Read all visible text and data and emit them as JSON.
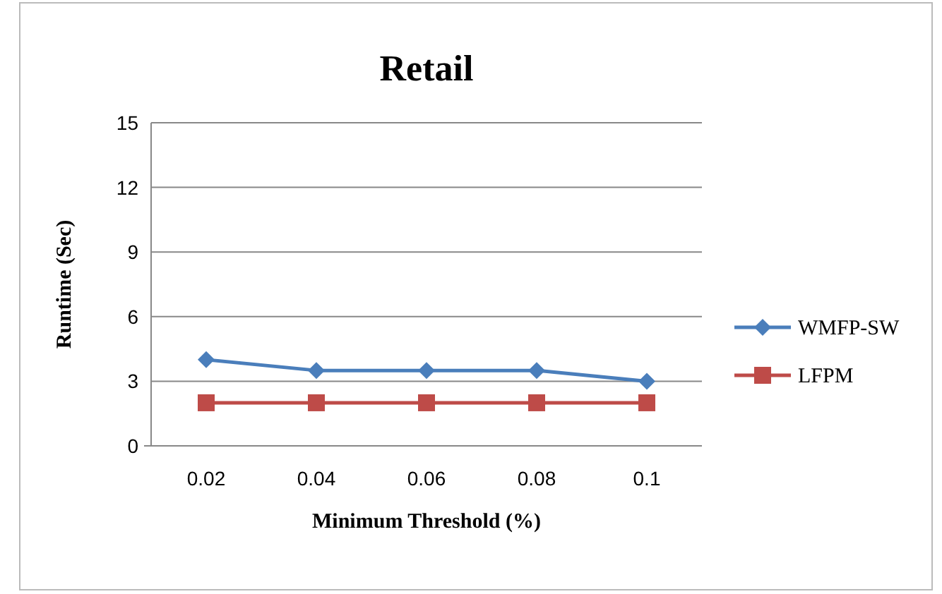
{
  "chart_data": {
    "type": "line",
    "title": "Retail",
    "xlabel": "Minimum Threshold (%)",
    "ylabel": "Runtime (Sec)",
    "categories": [
      "0.02",
      "0.04",
      "0.06",
      "0.08",
      "0.1"
    ],
    "series": [
      {
        "name": "WMFP-SW",
        "color": "#4a7ebb",
        "values": [
          4,
          3.5,
          3.5,
          3.5,
          3
        ],
        "marker": "diamond"
      },
      {
        "name": "LFPM",
        "color": "#be4b48",
        "values": [
          2,
          2,
          2,
          2,
          2
        ],
        "marker": "square"
      }
    ],
    "ylim": [
      0,
      15
    ],
    "yticks": [
      0,
      3,
      6,
      9,
      12,
      15
    ],
    "grid": "y",
    "legend": "right",
    "line_style": "solid"
  }
}
